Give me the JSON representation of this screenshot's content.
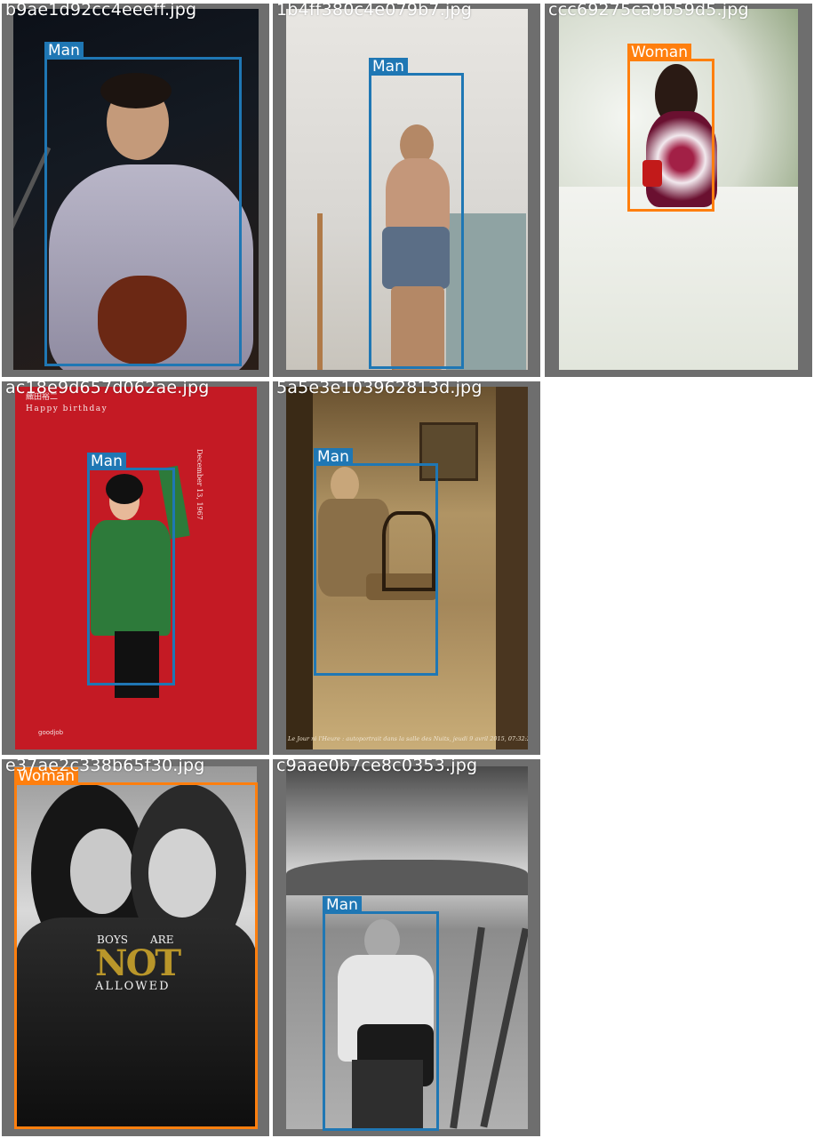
{
  "colors": {
    "man_box": "#1f77b4",
    "woman_box": "#ff7f0e",
    "tile_border": "#6e6e6e"
  },
  "tiles": [
    {
      "filename": "b9ae1d92cc4eeeff.jpg",
      "label": "Man"
    },
    {
      "filename": "1b4ff380c4e079b7.jpg",
      "label": "Man"
    },
    {
      "filename": "ccc69275ca9b59d5.jpg",
      "label": "Woman"
    },
    {
      "filename": "ac18e9d657d062ae.jpg",
      "label": "Man"
    },
    {
      "filename": "5a5e3e103962813d.jpg",
      "label": "Man"
    },
    {
      "filename": "e37ae2c338b65f30.jpg",
      "label": "Woman"
    },
    {
      "filename": "c9aae0b7ce8c0353.jpg",
      "label": "Man"
    }
  ],
  "poster_red": {
    "name_jp": "織田裕二",
    "subtitle": "Happy birthday",
    "date": "December 13, 1967",
    "logo": "goodjob"
  },
  "poster_sepia": {
    "caption": "Le Jour ni l'Heure : autoportrait dans la salle des Nuits, jeudi 9 avril 2015, 07:32:28"
  },
  "poster_bw": {
    "line1_left": "BOYS",
    "line1_right": "ARE",
    "line2": "NOT",
    "line3": "ALLOWED"
  }
}
